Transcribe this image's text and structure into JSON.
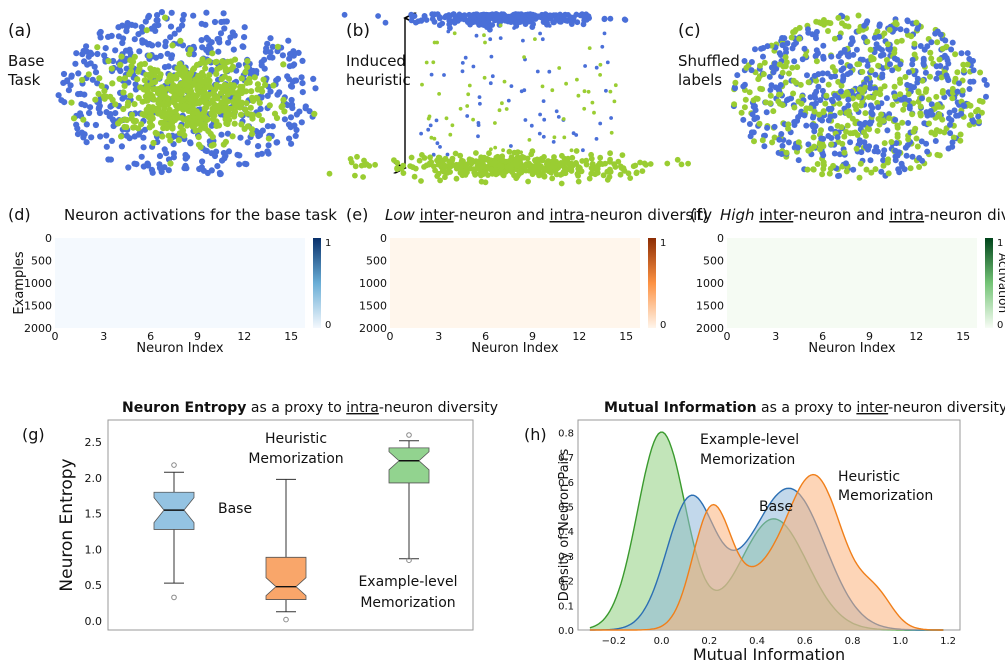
{
  "panels": {
    "a": {
      "tag": "(a)",
      "label_l1": "Base",
      "label_l2": "Task"
    },
    "b": {
      "tag": "(b)",
      "label_l1": "Induced",
      "label_l2": "heuristic"
    },
    "c": {
      "tag": "(c)",
      "label_l1": "Shuffled",
      "label_l2": "labels"
    },
    "d": {
      "tag": "(d)",
      "title": "Neuron activations for the base task"
    },
    "e": {
      "tag": "(e)",
      "title_italic": "Low",
      "title_u1": "inter",
      "title_mid": "-neuron and ",
      "title_u2": "intra",
      "title_end": "-neuron diversity"
    },
    "f": {
      "tag": "(f)",
      "title_italic": "High",
      "title_u1": "inter",
      "title_mid": "-neuron and ",
      "title_u2": "intra",
      "title_end": "-neuron diversity"
    },
    "g": {
      "tag": "(g)",
      "title_bold": "Neuron Entropy",
      "title_mid": " as a proxy to ",
      "title_u": "intra",
      "title_end": "-neuron diversity"
    },
    "h": {
      "tag": "(h)",
      "title_bold": "Mutual Information",
      "title_mid": " as a proxy to ",
      "title_u": "inter",
      "title_end": "-neuron diversity"
    }
  },
  "colors": {
    "blue": "#4a6fd8",
    "green": "#9acd32",
    "heat_blue": "#08519c",
    "heat_orange": "#b63e04",
    "heat_green": "#1b7a3a",
    "box_blue": "#94c3e2",
    "box_orange": "#f9a66a",
    "box_green": "#92d38f",
    "kde_green": "#8fcf80",
    "kde_blue": "#8fb8db",
    "kde_orange": "#fbb27c"
  },
  "heatmap_axes": {
    "ylabel": "Examples",
    "xlabel": "Neuron Index",
    "yticks": [
      "0",
      "500",
      "1000",
      "1500",
      "2000"
    ],
    "xticks": [
      "0",
      "3",
      "6",
      "9",
      "12",
      "15"
    ],
    "cbar_max": "1",
    "cbar_min": "0",
    "cbar_label": "Activation"
  },
  "chart_data": [
    {
      "type": "box",
      "ylabel": "Neuron Entropy",
      "ylim": [
        0,
        2.6
      ],
      "yticks": [
        "0.0",
        "0.5",
        "1.0",
        "1.5",
        "2.0",
        "2.5"
      ],
      "boxes": [
        {
          "name": "Base",
          "whisker_low": 0.53,
          "q1": 1.28,
          "median": 1.55,
          "q3": 1.8,
          "whisker_high": 2.08,
          "outliers": [
            0.33,
            2.18
          ]
        },
        {
          "name": "Heuristic Memorization",
          "whisker_low": 0.13,
          "q1": 0.3,
          "median": 0.48,
          "q3": 0.89,
          "whisker_high": 1.98,
          "outliers": [
            0.02
          ]
        },
        {
          "name": "Example-level Memorization",
          "whisker_low": 0.87,
          "q1": 1.93,
          "median": 2.24,
          "q3": 2.42,
          "whisker_high": 2.52,
          "outliers": [
            0.85,
            2.6
          ]
        }
      ],
      "labels": {
        "base": "Base",
        "heur_l1": "Heuristic",
        "heur_l2": "Memorization",
        "ex_l1": "Example-level",
        "ex_l2": "Memorization"
      }
    },
    {
      "type": "area",
      "xlabel": "Mutual Information",
      "ylabel": "Density of Neuron Pairs",
      "xlim": [
        -0.35,
        1.25
      ],
      "ylim": [
        0,
        0.85
      ],
      "xticks": [
        "−0.2",
        "0.0",
        "0.2",
        "0.4",
        "0.6",
        "0.8",
        "1.0",
        "1.2"
      ],
      "yticks": [
        "0.0",
        "0.1",
        "0.2",
        "0.3",
        "0.4",
        "0.5",
        "0.6",
        "0.7",
        "0.8"
      ],
      "series": [
        {
          "name": "Example-level Memorization",
          "peaks": [
            [
              0.0,
              0.8,
              0.1
            ],
            [
              0.47,
              0.45,
              0.14
            ]
          ]
        },
        {
          "name": "Base",
          "peaks": [
            [
              0.12,
              0.52,
              0.1
            ],
            [
              0.55,
              0.54,
              0.14
            ],
            [
              0.35,
              0.12,
              0.12
            ]
          ]
        },
        {
          "name": "Heuristic Memorization",
          "peaks": [
            [
              0.21,
              0.48,
              0.08
            ],
            [
              0.64,
              0.62,
              0.12
            ],
            [
              0.9,
              0.12,
              0.07
            ],
            [
              0.4,
              0.15,
              0.1
            ]
          ]
        }
      ],
      "labels": {
        "ex_l1": "Example-level",
        "ex_l2": "Memorization",
        "base": "Base",
        "heur_l1": "Heuristic",
        "heur_l2": "Memorization"
      }
    }
  ]
}
